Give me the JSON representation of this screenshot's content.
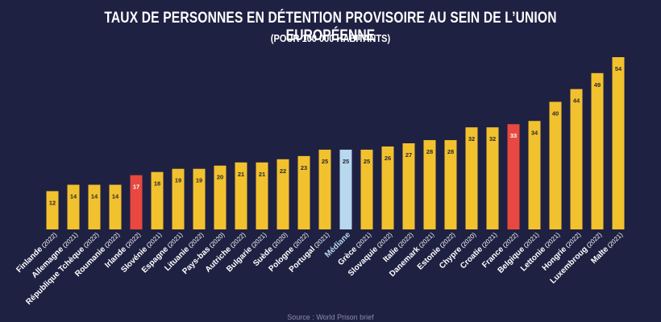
{
  "title": "TAUX DE PERSONNES EN DÉTENTION PROVISOIRE AU SEIN DE L’UNION EUROPÉENNE",
  "subtitle": "(POUR 100 000 HABITANTS)",
  "source": "Source : World Prison brief",
  "colors": {
    "background": "#1f2142",
    "default": "#f2c12e",
    "highlight": "#e8483f",
    "median": "#b8d8ee",
    "label_dark": "#2a2a2a",
    "label_light": "#ffffff",
    "axis_text": "#ffffff"
  },
  "chart_data": {
    "type": "bar",
    "title": "TAUX DE PERSONNES EN DÉTENTION PROVISOIRE AU SEIN DE L’UNION EUROPÉENNE",
    "subtitle": "(POUR 100 000 HABITANTS)",
    "xlabel": "",
    "ylabel": "",
    "ylim": [
      0,
      54
    ],
    "grid": false,
    "legend": "none",
    "categories": [
      {
        "name": "Finlande",
        "year": "(2022)"
      },
      {
        "name": "Allemagne",
        "year": "(2021)"
      },
      {
        "name": "République Tchèque",
        "year": "(2022)"
      },
      {
        "name": "Roumanie",
        "year": "(2022)"
      },
      {
        "name": "Irlande",
        "year": "(2022)"
      },
      {
        "name": "Slovénie",
        "year": "(2021)"
      },
      {
        "name": "Espagne",
        "year": "(2021)"
      },
      {
        "name": "Lituanie",
        "year": "(2022)"
      },
      {
        "name": "Pays-bas",
        "year": "(2020)"
      },
      {
        "name": "Autriche",
        "year": "(2022)"
      },
      {
        "name": "Bulgarie",
        "year": "(2021)"
      },
      {
        "name": "Suède",
        "year": "(2020)"
      },
      {
        "name": "Pologne",
        "year": "(2022)"
      },
      {
        "name": "Portugal",
        "year": "(2021)"
      },
      {
        "name": "Médiane",
        "year": ""
      },
      {
        "name": "Grèce",
        "year": "(2021)"
      },
      {
        "name": "Slovaquie",
        "year": "(2022)"
      },
      {
        "name": "Italie",
        "year": "(2022)"
      },
      {
        "name": "Danemark",
        "year": "(2021)"
      },
      {
        "name": "Estonie",
        "year": "(2022)"
      },
      {
        "name": "Chypre",
        "year": "(2020)"
      },
      {
        "name": "Croatie",
        "year": "(2021)"
      },
      {
        "name": "France",
        "year": "(2022)"
      },
      {
        "name": "Belgique",
        "year": "(2021)"
      },
      {
        "name": "Lettonie",
        "year": "(2021)"
      },
      {
        "name": "Hongrie",
        "year": "(2022)"
      },
      {
        "name": "Luxembroug",
        "year": "(2022)"
      },
      {
        "name": "Malte",
        "year": "(2021)"
      }
    ],
    "values": [
      12,
      14,
      14,
      14,
      17,
      18,
      19,
      19,
      20,
      21,
      21,
      22,
      23,
      25,
      25,
      25,
      26,
      27,
      28,
      28,
      32,
      32,
      33,
      34,
      40,
      44,
      49,
      54
    ],
    "highlighted": [
      "Irlande",
      "France"
    ],
    "median_category": "Médiane"
  }
}
